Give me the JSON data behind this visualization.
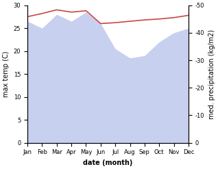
{
  "months": [
    "Jan",
    "Feb",
    "Mar",
    "Apr",
    "May",
    "Jun",
    "Jul",
    "Aug",
    "Sep",
    "Oct",
    "Nov",
    "Dec"
  ],
  "x": [
    0,
    1,
    2,
    3,
    4,
    5,
    6,
    7,
    8,
    9,
    10,
    11
  ],
  "temp": [
    27.5,
    28.2,
    29.0,
    28.5,
    28.8,
    26.0,
    26.2,
    26.5,
    26.8,
    27.0,
    27.3,
    27.8
  ],
  "precip": [
    26.5,
    25.0,
    28.0,
    26.5,
    28.5,
    26.0,
    20.5,
    18.5,
    19.0,
    22.0,
    24.0,
    25.0
  ],
  "temp_color": "#cc4444",
  "precip_fill_color": "#c8d0f0",
  "ylabel_left": "max temp (C)",
  "ylabel_right": "med. precipitation (kg/m2)",
  "xlabel": "date (month)",
  "ylim_left": [
    0,
    30
  ],
  "ylim_right": [
    0,
    50
  ],
  "yticks_left": [
    0,
    5,
    10,
    15,
    20,
    25,
    30
  ],
  "yticks_right": [
    0,
    10,
    20,
    30,
    40,
    50
  ],
  "background_color": "#ffffff",
  "title_fontsize": 7,
  "axis_label_fontsize": 7,
  "tick_fontsize": 6,
  "xlabel_fontsize": 7,
  "linewidth": 1.2
}
